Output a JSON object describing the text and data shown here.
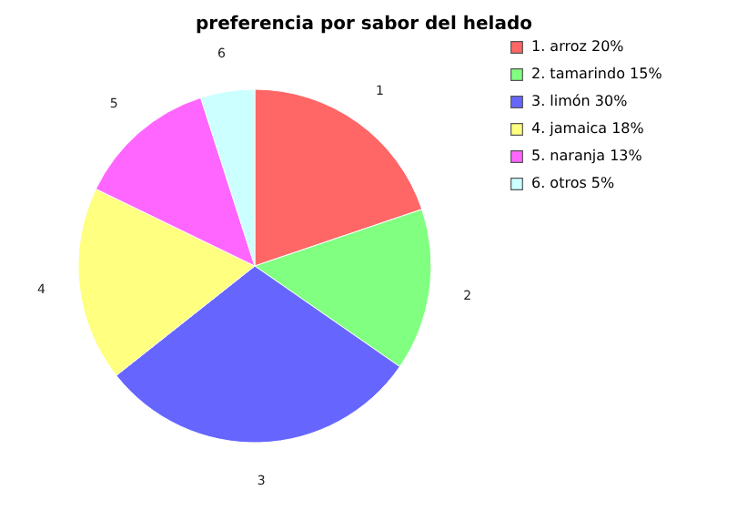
{
  "chart_data": {
    "type": "pie",
    "title": "preferencia por sabor del helado",
    "categories": [
      "1. arroz 20%",
      "2. tamarindo 15%",
      "3. limón 30%",
      "4. jamaica 18%",
      "5. naranja 13%",
      "6. otros 5%"
    ],
    "values": [
      20,
      15,
      30,
      18,
      13,
      5
    ],
    "annotations": [
      "1",
      "2",
      "3",
      "4",
      "5",
      "6"
    ],
    "colors": [
      "#ff6666",
      "#80ff80",
      "#6666ff",
      "#ffff80",
      "#ff66ff",
      "#ccffff"
    ],
    "legend": "right"
  }
}
